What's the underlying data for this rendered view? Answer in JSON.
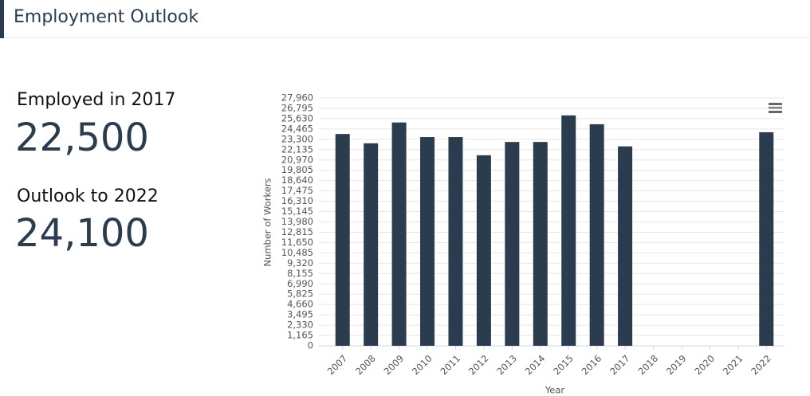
{
  "header": {
    "title": "Employment Outlook"
  },
  "stats": [
    {
      "label": "Employed in 2017",
      "value": "22,500"
    },
    {
      "label": "Outlook to 2022",
      "value": "24,100"
    }
  ],
  "chart_data": {
    "type": "bar",
    "x_label": "Year",
    "y_label": "Number of Workers",
    "categories": [
      "2007",
      "2008",
      "2009",
      "2010",
      "2011",
      "2012",
      "2013",
      "2014",
      "2015",
      "2016",
      "2017",
      "2018",
      "2019",
      "2020",
      "2021",
      "2022"
    ],
    "values": [
      23900,
      22850,
      25200,
      23550,
      23550,
      21500,
      23000,
      23000,
      26000,
      25000,
      22500,
      null,
      null,
      null,
      null,
      24100
    ],
    "color": "#2b3c4e",
    "ylim": [
      0,
      27960
    ],
    "yticks": [
      0,
      {
        "value": 1165,
        "label": "1,165"
      },
      {
        "value": 2330,
        "label": "2,330"
      },
      {
        "value": 3495,
        "label": "3,495"
      },
      {
        "value": 4660,
        "label": "4,660"
      },
      {
        "value": 5825,
        "label": "5,825"
      },
      {
        "value": 6990,
        "label": "6,990"
      },
      {
        "value": 8155,
        "label": "8,155"
      },
      {
        "value": 9320,
        "label": "9,320"
      },
      {
        "value": 10485,
        "label": "10,485"
      },
      {
        "value": 11650,
        "label": "11,650"
      },
      {
        "value": 12815,
        "label": "12,815"
      },
      {
        "value": 13980,
        "label": "13,980"
      },
      {
        "value": 15145,
        "label": "15,145"
      },
      {
        "value": 16310,
        "label": "16,310"
      },
      {
        "value": 17475,
        "label": "17,475"
      },
      {
        "value": 18640,
        "label": "18,640"
      },
      {
        "value": 19805,
        "label": "19,805"
      },
      {
        "value": 20970,
        "label": "20,970"
      },
      {
        "value": 22135,
        "label": "22,135"
      },
      {
        "value": 23300,
        "label": "23,300"
      },
      {
        "value": 24465,
        "label": "24,465"
      },
      {
        "value": 25630,
        "label": "25,630"
      },
      {
        "value": 26795,
        "label": "26,795"
      },
      {
        "value": 27960,
        "label": "27,960"
      }
    ],
    "grid": true
  }
}
